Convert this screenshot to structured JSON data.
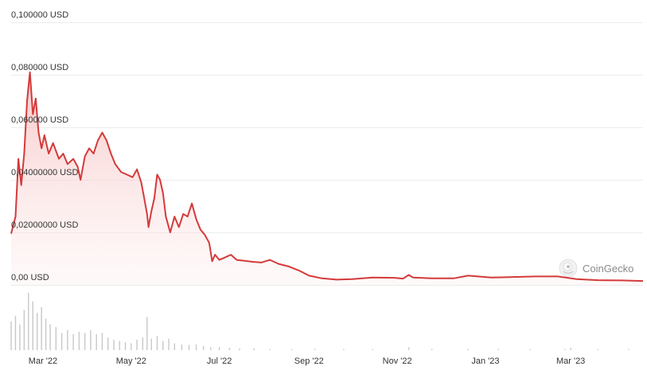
{
  "chart_data": {
    "type": "area",
    "title": "",
    "xlabel": "",
    "ylabel": "",
    "y_unit": "USD",
    "ylim": [
      0,
      0.1
    ],
    "y_ticks": [
      {
        "value": 0.0,
        "label": "0,00 USD"
      },
      {
        "value": 0.02,
        "label": "0,02000000 USD"
      },
      {
        "value": 0.04,
        "label": "0,04000000 USD"
      },
      {
        "value": 0.06,
        "label": "0,060000 USD"
      },
      {
        "value": 0.08,
        "label": "0,080000 USD"
      },
      {
        "value": 0.1,
        "label": "0,100000 USD"
      }
    ],
    "x_ticks": [
      {
        "date": "2022-03-01",
        "label": "Mar '22"
      },
      {
        "date": "2022-05-01",
        "label": "May '22"
      },
      {
        "date": "2022-07-01",
        "label": "Jul '22"
      },
      {
        "date": "2022-09-01",
        "label": "Sep '22"
      },
      {
        "date": "2022-11-01",
        "label": "Nov '22"
      },
      {
        "date": "2023-01-01",
        "label": "Jan '23"
      },
      {
        "date": "2023-03-01",
        "label": "Mar '23"
      }
    ],
    "xlim": [
      "2022-02-07",
      "2023-04-20"
    ],
    "grid": true,
    "colors": {
      "line": "#d43a3a",
      "area_top": "#f5b5b5",
      "volume": "#c8c8c8",
      "grid": "#ececec"
    },
    "series": [
      {
        "points": [
          [
            "2022-02-07",
            0.0195
          ],
          [
            "2022-02-10",
            0.026
          ],
          [
            "2022-02-12",
            0.048
          ],
          [
            "2022-02-14",
            0.038
          ],
          [
            "2022-02-16",
            0.05
          ],
          [
            "2022-02-18",
            0.07
          ],
          [
            "2022-02-20",
            0.081
          ],
          [
            "2022-02-22",
            0.065
          ],
          [
            "2022-02-24",
            0.071
          ],
          [
            "2022-02-26",
            0.058
          ],
          [
            "2022-02-28",
            0.052
          ],
          [
            "2022-03-02",
            0.057
          ],
          [
            "2022-03-05",
            0.05
          ],
          [
            "2022-03-08",
            0.054
          ],
          [
            "2022-03-12",
            0.048
          ],
          [
            "2022-03-15",
            0.05
          ],
          [
            "2022-03-18",
            0.046
          ],
          [
            "2022-03-22",
            0.048
          ],
          [
            "2022-03-25",
            0.045
          ],
          [
            "2022-03-27",
            0.04
          ],
          [
            "2022-03-30",
            0.049
          ],
          [
            "2022-04-02",
            0.052
          ],
          [
            "2022-04-05",
            0.05
          ],
          [
            "2022-04-08",
            0.055
          ],
          [
            "2022-04-11",
            0.058
          ],
          [
            "2022-04-14",
            0.055
          ],
          [
            "2022-04-17",
            0.05
          ],
          [
            "2022-04-20",
            0.046
          ],
          [
            "2022-04-24",
            0.043
          ],
          [
            "2022-04-28",
            0.042
          ],
          [
            "2022-05-02",
            0.041
          ],
          [
            "2022-05-05",
            0.044
          ],
          [
            "2022-05-08",
            0.039
          ],
          [
            "2022-05-10",
            0.033
          ],
          [
            "2022-05-12",
            0.027
          ],
          [
            "2022-05-13",
            0.022
          ],
          [
            "2022-05-15",
            0.028
          ],
          [
            "2022-05-17",
            0.033
          ],
          [
            "2022-05-19",
            0.042
          ],
          [
            "2022-05-21",
            0.04
          ],
          [
            "2022-05-23",
            0.035
          ],
          [
            "2022-05-25",
            0.026
          ],
          [
            "2022-05-28",
            0.02
          ],
          [
            "2022-05-31",
            0.026
          ],
          [
            "2022-06-03",
            0.022
          ],
          [
            "2022-06-06",
            0.027
          ],
          [
            "2022-06-09",
            0.026
          ],
          [
            "2022-06-12",
            0.031
          ],
          [
            "2022-06-15",
            0.025
          ],
          [
            "2022-06-18",
            0.021
          ],
          [
            "2022-06-21",
            0.019
          ],
          [
            "2022-06-24",
            0.016
          ],
          [
            "2022-06-26",
            0.009
          ],
          [
            "2022-06-28",
            0.0115
          ],
          [
            "2022-07-01",
            0.0095
          ],
          [
            "2022-07-05",
            0.0105
          ],
          [
            "2022-07-09",
            0.0115
          ],
          [
            "2022-07-13",
            0.0095
          ],
          [
            "2022-07-18",
            0.0092
          ],
          [
            "2022-07-24",
            0.0088
          ],
          [
            "2022-07-30",
            0.0085
          ],
          [
            "2022-08-05",
            0.0095
          ],
          [
            "2022-08-11",
            0.008
          ],
          [
            "2022-08-18",
            0.007
          ],
          [
            "2022-08-25",
            0.0055
          ],
          [
            "2022-09-01",
            0.0035
          ],
          [
            "2022-09-10",
            0.0025
          ],
          [
            "2022-09-20",
            0.002
          ],
          [
            "2022-10-01",
            0.0022
          ],
          [
            "2022-10-15",
            0.0028
          ],
          [
            "2022-10-30",
            0.0027
          ],
          [
            "2022-11-05",
            0.0024
          ],
          [
            "2022-11-09",
            0.0038
          ],
          [
            "2022-11-12",
            0.0028
          ],
          [
            "2022-11-25",
            0.0025
          ],
          [
            "2022-12-10",
            0.0025
          ],
          [
            "2022-12-20",
            0.0035
          ],
          [
            "2023-01-05",
            0.0028
          ],
          [
            "2023-01-20",
            0.003
          ],
          [
            "2023-02-05",
            0.0032
          ],
          [
            "2023-02-20",
            0.0032
          ],
          [
            "2023-03-05",
            0.0022
          ],
          [
            "2023-03-20",
            0.0018
          ],
          [
            "2023-04-05",
            0.0017
          ],
          [
            "2023-04-20",
            0.0015
          ]
        ]
      }
    ],
    "volume_series": [
      {
        "date": "2022-02-07",
        "relative": 0.5
      },
      {
        "date": "2022-02-10",
        "relative": 0.6
      },
      {
        "date": "2022-02-13",
        "relative": 0.45
      },
      {
        "date": "2022-02-16",
        "relative": 0.7
      },
      {
        "date": "2022-02-19",
        "relative": 1.0
      },
      {
        "date": "2022-02-22",
        "relative": 0.85
      },
      {
        "date": "2022-02-25",
        "relative": 0.65
      },
      {
        "date": "2022-02-28",
        "relative": 0.75
      },
      {
        "date": "2022-03-03",
        "relative": 0.55
      },
      {
        "date": "2022-03-06",
        "relative": 0.45
      },
      {
        "date": "2022-03-10",
        "relative": 0.4
      },
      {
        "date": "2022-03-14",
        "relative": 0.3
      },
      {
        "date": "2022-03-18",
        "relative": 0.35
      },
      {
        "date": "2022-03-22",
        "relative": 0.28
      },
      {
        "date": "2022-03-26",
        "relative": 0.32
      },
      {
        "date": "2022-03-30",
        "relative": 0.3
      },
      {
        "date": "2022-04-03",
        "relative": 0.35
      },
      {
        "date": "2022-04-07",
        "relative": 0.28
      },
      {
        "date": "2022-04-11",
        "relative": 0.3
      },
      {
        "date": "2022-04-15",
        "relative": 0.22
      },
      {
        "date": "2022-04-19",
        "relative": 0.18
      },
      {
        "date": "2022-04-23",
        "relative": 0.16
      },
      {
        "date": "2022-04-27",
        "relative": 0.14
      },
      {
        "date": "2022-05-01",
        "relative": 0.12
      },
      {
        "date": "2022-05-05",
        "relative": 0.18
      },
      {
        "date": "2022-05-09",
        "relative": 0.22
      },
      {
        "date": "2022-05-12",
        "relative": 0.58
      },
      {
        "date": "2022-05-15",
        "relative": 0.2
      },
      {
        "date": "2022-05-19",
        "relative": 0.25
      },
      {
        "date": "2022-05-23",
        "relative": 0.16
      },
      {
        "date": "2022-05-27",
        "relative": 0.2
      },
      {
        "date": "2022-05-31",
        "relative": 0.12
      },
      {
        "date": "2022-06-05",
        "relative": 0.1
      },
      {
        "date": "2022-06-10",
        "relative": 0.09
      },
      {
        "date": "2022-06-15",
        "relative": 0.1
      },
      {
        "date": "2022-06-20",
        "relative": 0.07
      },
      {
        "date": "2022-06-25",
        "relative": 0.05
      },
      {
        "date": "2022-07-01",
        "relative": 0.05
      },
      {
        "date": "2022-07-08",
        "relative": 0.04
      },
      {
        "date": "2022-07-15",
        "relative": 0.03
      },
      {
        "date": "2022-07-25",
        "relative": 0.03
      },
      {
        "date": "2022-08-05",
        "relative": 0.02
      },
      {
        "date": "2022-08-20",
        "relative": 0.02
      },
      {
        "date": "2022-09-05",
        "relative": 0.02
      },
      {
        "date": "2022-09-25",
        "relative": 0.02
      },
      {
        "date": "2022-10-15",
        "relative": 0.02
      },
      {
        "date": "2022-11-09",
        "relative": 0.05
      },
      {
        "date": "2022-11-25",
        "relative": 0.02
      },
      {
        "date": "2022-12-20",
        "relative": 0.02
      },
      {
        "date": "2023-01-10",
        "relative": 0.02
      },
      {
        "date": "2023-02-01",
        "relative": 0.02
      },
      {
        "date": "2023-02-25",
        "relative": 0.02
      },
      {
        "date": "2023-03-01",
        "relative": 0.04
      },
      {
        "date": "2023-03-20",
        "relative": 0.02
      },
      {
        "date": "2023-04-10",
        "relative": 0.02
      }
    ]
  },
  "watermark": {
    "text": "CoinGecko",
    "icon": "gecko-logo-icon"
  }
}
